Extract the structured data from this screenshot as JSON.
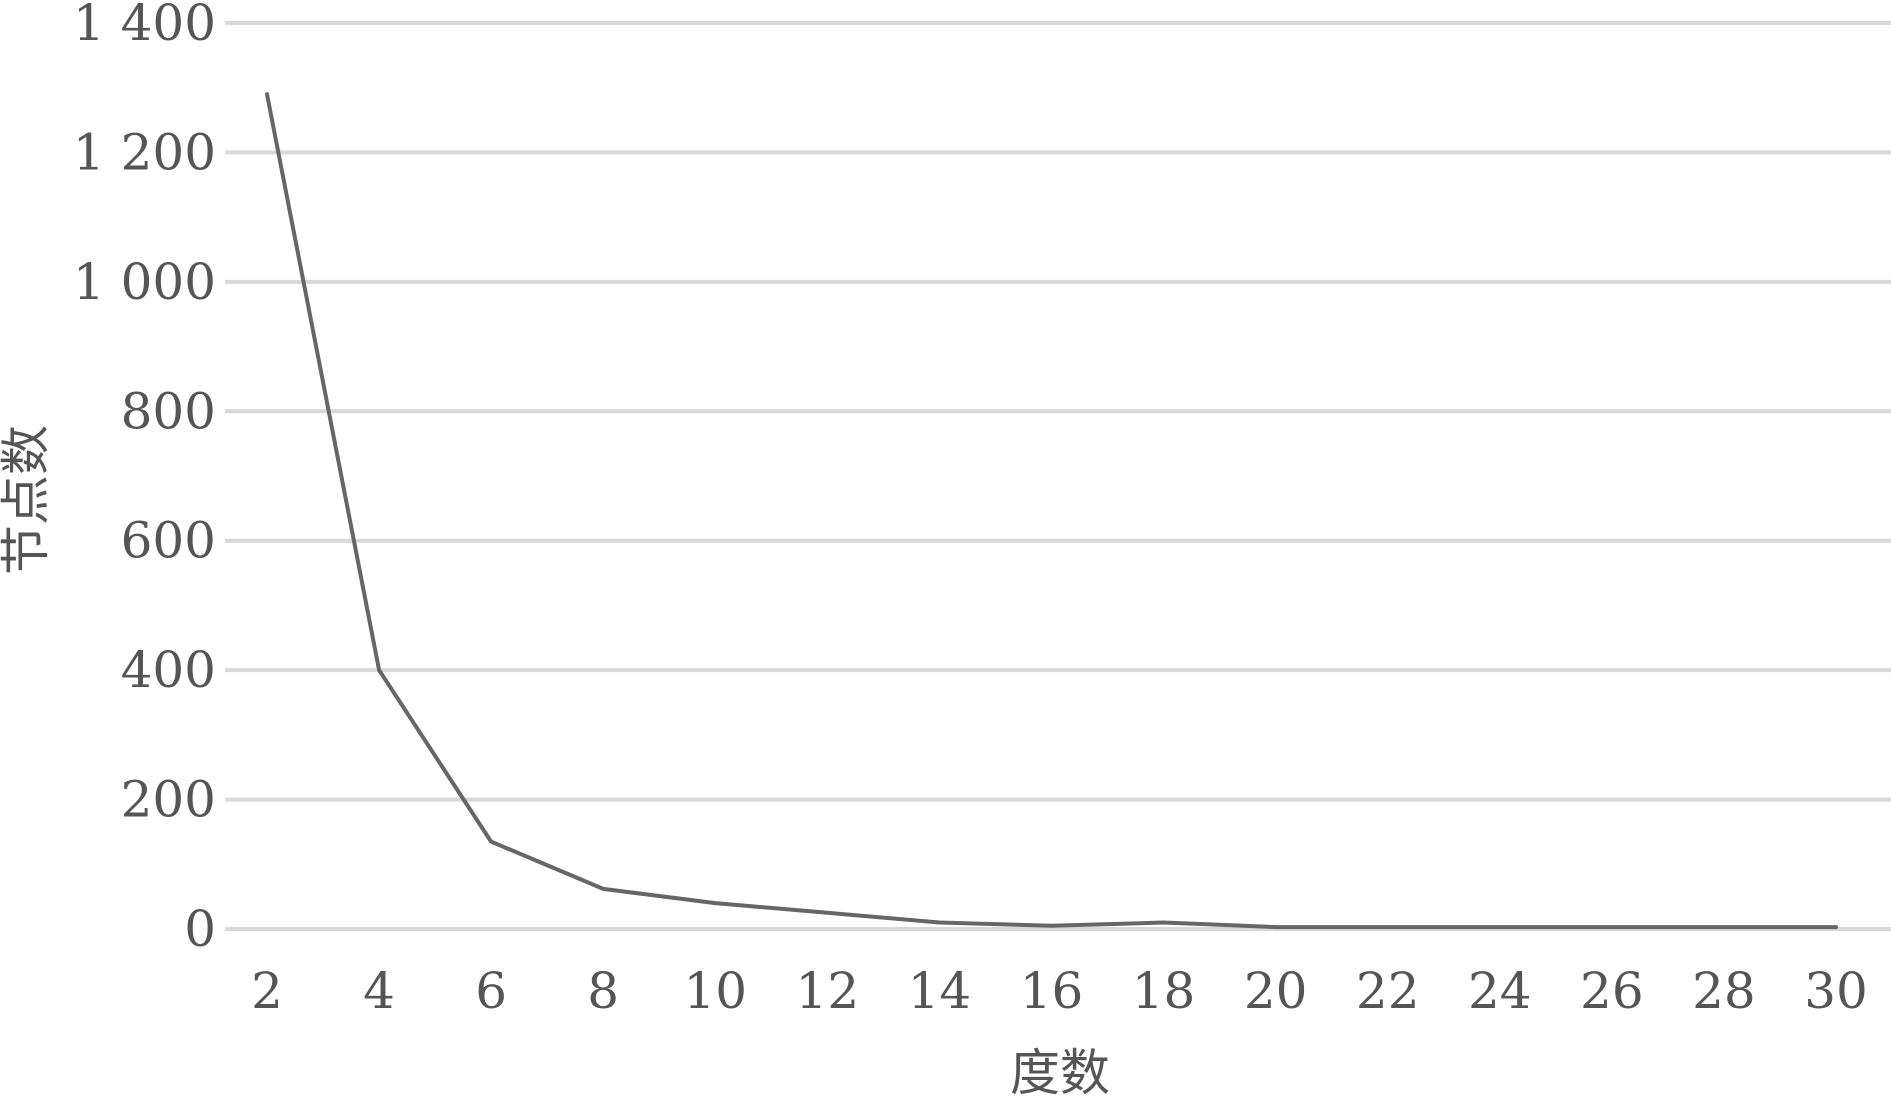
{
  "chart_data": {
    "type": "line",
    "title": "",
    "xlabel": "度数",
    "ylabel": "节点数",
    "x": [
      2,
      4,
      6,
      8,
      10,
      12,
      14,
      16,
      18,
      20,
      22,
      24,
      26,
      28,
      30
    ],
    "x_tick_labels": [
      "2",
      "4",
      "6",
      "8",
      "10",
      "12",
      "14",
      "16",
      "18",
      "20",
      "22",
      "24",
      "26",
      "28",
      "30"
    ],
    "y_tick_values": [
      0,
      200,
      400,
      600,
      800,
      1000,
      1200,
      1400
    ],
    "y_tick_labels": [
      "0",
      "200",
      "400",
      "600",
      "800",
      "1 000",
      "1 200",
      "1 400"
    ],
    "ylim": [
      0,
      1400
    ],
    "grid": true,
    "legend": "none",
    "series": [
      {
        "values": [
          1290,
          400,
          135,
          62,
          40,
          25,
          10,
          5,
          10,
          3,
          3,
          3,
          3,
          3,
          3
        ],
        "color": "#666666"
      }
    ],
    "grid_color": "#d9d9d9",
    "text_color": "#555555"
  }
}
